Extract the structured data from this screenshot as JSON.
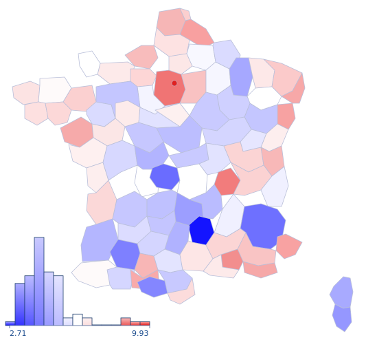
{
  "legend": {
    "min_label": "2.71",
    "max_label": "9.93",
    "histogram": [
      1,
      11,
      13,
      23,
      14,
      13,
      2,
      3,
      2,
      0,
      0,
      0,
      2,
      1,
      1
    ]
  },
  "colors": {
    "low": "#0000ff",
    "mid": "#ffffff",
    "high": "#e00000",
    "border": "#b9bfd9"
  }
}
